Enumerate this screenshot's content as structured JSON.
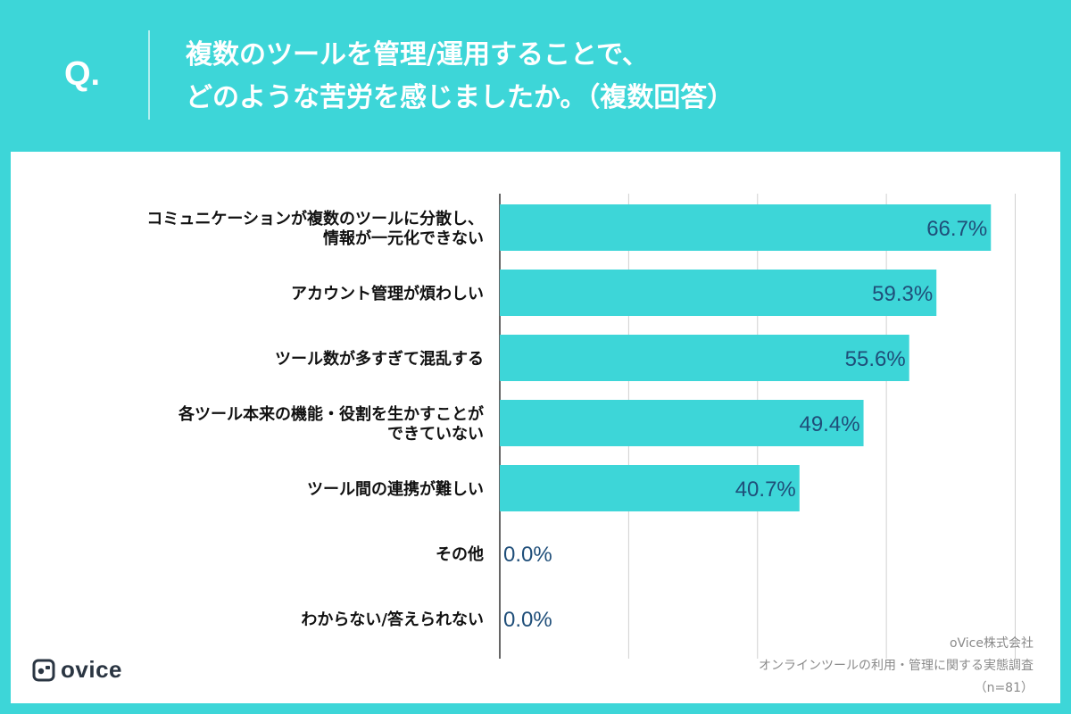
{
  "header": {
    "q_mark": "Q.",
    "title_line1": "複数のツールを管理/運用することで、",
    "title_line2": "どのような苦労を感じましたか。（複数回答）"
  },
  "logo": {
    "text": "ovice"
  },
  "source": {
    "company": "oVice株式会社",
    "survey": "オンラインツールの利用・管理に関する実態調査",
    "sample": "（n=81）"
  },
  "colors": {
    "bar": "#3dd6d8",
    "value_label": "#1f4e79",
    "grid": "#d0d0d0",
    "axis": "#333333",
    "background": "#3dd6d8"
  },
  "chart_data": {
    "type": "bar",
    "orientation": "horizontal",
    "title": "複数のツールを管理/運用することで、どのような苦労を感じましたか。（複数回答）",
    "categories": [
      [
        "コミュニケーションが複数のツールに分散し、",
        "情報が一元化できない"
      ],
      [
        "アカウント管理が煩わしい"
      ],
      [
        "ツール数が多すぎて混乱する"
      ],
      [
        "各ツール本来の機能・役割を生かすことが",
        "できていない"
      ],
      [
        "ツール間の連携が難しい"
      ],
      [
        "その他"
      ],
      [
        "わからない/答えられない"
      ]
    ],
    "values": [
      66.7,
      59.3,
      55.6,
      49.4,
      40.7,
      0.0,
      0.0
    ],
    "value_labels": [
      "66.7%",
      "59.3%",
      "55.6%",
      "49.4%",
      "40.7%",
      "0.0%",
      "0.0%"
    ],
    "xlim": [
      0,
      100
    ],
    "gridlines": [
      0,
      17.5,
      35,
      52.5,
      70
    ],
    "grid": true
  }
}
